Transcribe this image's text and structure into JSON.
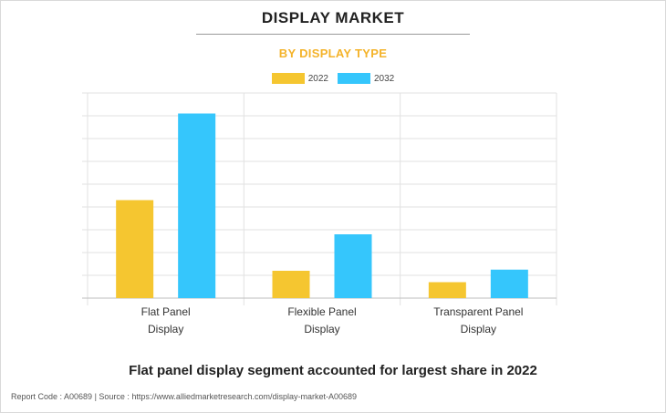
{
  "header": {
    "title": "DISPLAY MARKET",
    "subtitle": "BY DISPLAY TYPE"
  },
  "colors": {
    "series_2022": "#f5c630",
    "series_2032": "#35c6fc",
    "subtitle": "#f4b32a",
    "grid": "#e2e2e2"
  },
  "chart_data": {
    "type": "bar",
    "categories": [
      [
        "Flat Panel",
        "Display"
      ],
      [
        "Flexible Panel",
        "Display"
      ],
      [
        "Transparent Panel",
        "Display"
      ]
    ],
    "series": [
      {
        "name": "2022",
        "values": [
          43,
          12,
          7
        ]
      },
      {
        "name": "2032",
        "values": [
          81,
          28,
          12.5
        ]
      }
    ],
    "ylim": [
      0,
      90
    ],
    "grid": true,
    "legend_position": "top-center",
    "y_tick_labels_shown": false
  },
  "caption": "Flat panel display segment accounted for largest share in 2022",
  "footer": "Report Code : A00689  |  Source : https://www.alliedmarketresearch.com/display-market-A00689"
}
